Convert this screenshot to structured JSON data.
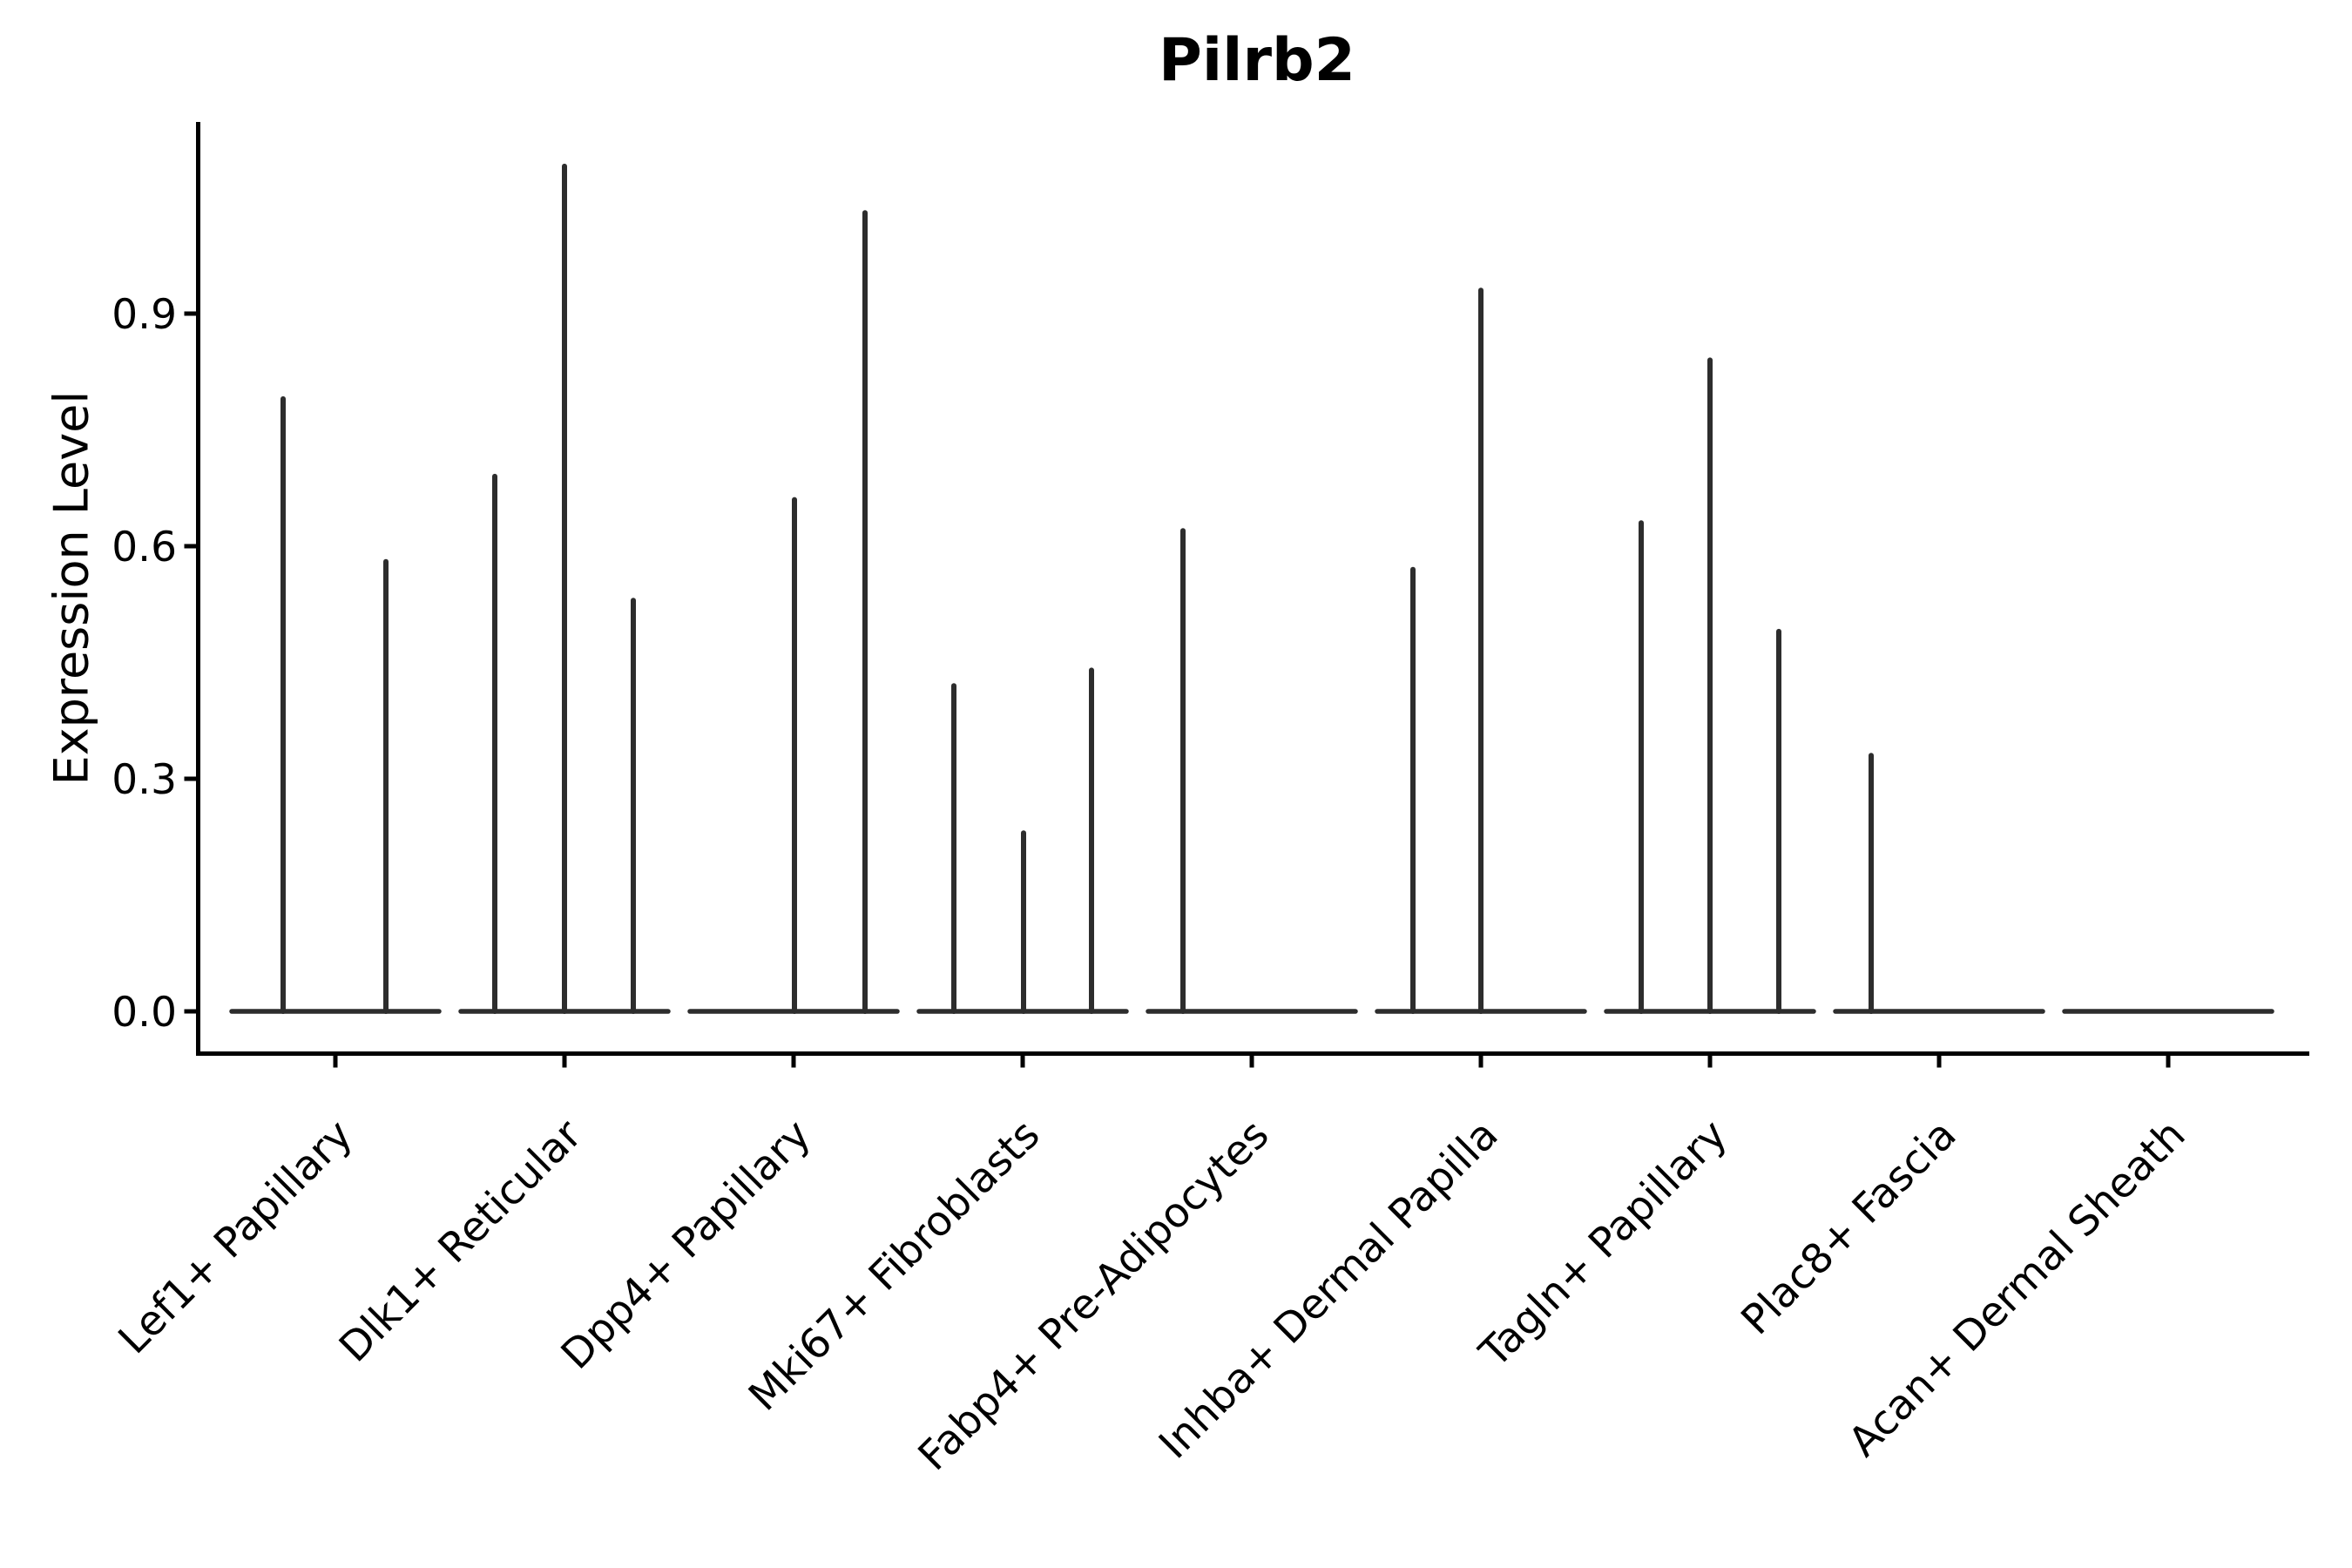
{
  "chart_data": {
    "type": "violin",
    "title": "Pilrb2",
    "xlabel": "",
    "ylabel": "Expression Level",
    "grid": false,
    "legend": null,
    "background_color": "#ffffff",
    "axis_color": "#000000",
    "text_color": "#000000",
    "violin_color": "#2d2d2d",
    "xticklabel_rotation": 45,
    "ylim": [
      -0.055,
      1.147
    ],
    "ytick_values": [
      0.0,
      0.3,
      0.6,
      0.9
    ],
    "ytick_labels": [
      "0.0",
      "0.3",
      "0.6",
      "0.9"
    ],
    "categories": [
      {
        "label": "Lef1+ Papillary",
        "violins": [
          {
            "offset": -60,
            "max": 0.79
          },
          {
            "offset": 58,
            "max": 0.58
          }
        ]
      },
      {
        "label": "Dlk1+ Reticular",
        "violins": [
          {
            "offset": -80,
            "max": 0.69
          },
          {
            "offset": 0,
            "max": 1.09
          },
          {
            "offset": 79,
            "max": 0.53
          }
        ]
      },
      {
        "label": "Dpp4+ Papillary",
        "violins": [
          {
            "offset": 1,
            "max": 0.66
          },
          {
            "offset": 82,
            "max": 1.03
          }
        ]
      },
      {
        "label": "Mki67+ Fibroblasts",
        "violins": [
          {
            "offset": -79,
            "max": 0.42
          },
          {
            "offset": 1,
            "max": 0.23
          },
          {
            "offset": 79,
            "max": 0.44
          }
        ]
      },
      {
        "label": "Fabp4+ Pre-Adipocytes",
        "violins": [
          {
            "offset": -79,
            "max": 0.62
          }
        ]
      },
      {
        "label": "Inhba+ Dermal Papilla",
        "violins": [
          {
            "offset": -78,
            "max": 0.57
          },
          {
            "offset": 0,
            "max": 0.93
          }
        ]
      },
      {
        "label": "Tagln+ Papillary",
        "violins": [
          {
            "offset": -79,
            "max": 0.63
          },
          {
            "offset": 0,
            "max": 0.84
          },
          {
            "offset": 79,
            "max": 0.49
          }
        ]
      },
      {
        "label": "Plac8+ Fascia",
        "violins": [
          {
            "offset": -78,
            "max": 0.33
          }
        ]
      },
      {
        "label": "Acan+ Dermal Sheath",
        "violins": []
      }
    ]
  }
}
